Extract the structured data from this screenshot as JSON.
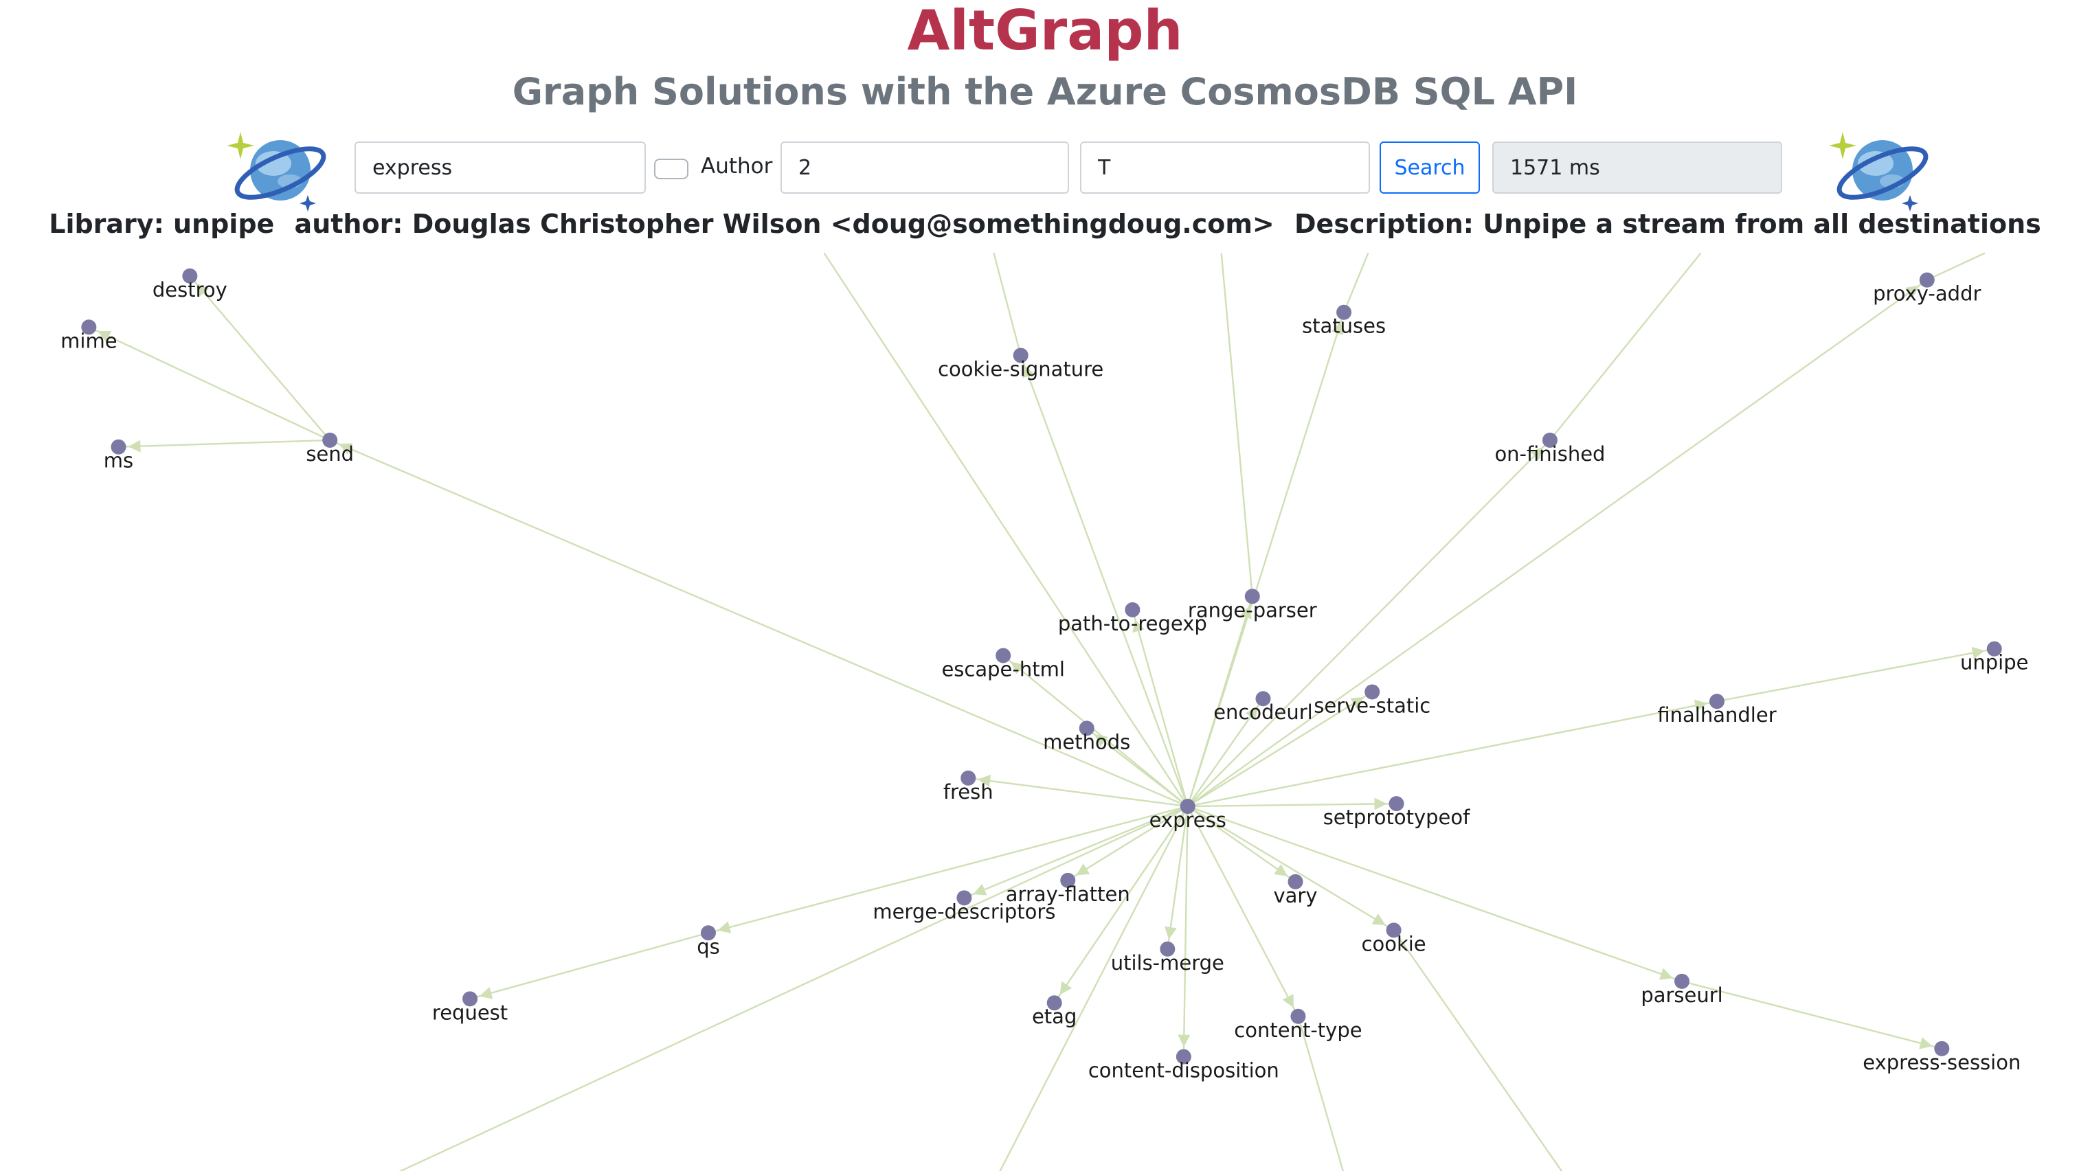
{
  "header": {
    "title": "AltGraph",
    "subtitle": "Graph Solutions with the Azure CosmosDB SQL API"
  },
  "logo_icon": "cosmosdb-planet-icon",
  "search": {
    "query_value": "express",
    "author_label": "Author",
    "author_checked": false,
    "depth_value": "2",
    "flag_value": "T",
    "search_label": "Search",
    "elapsed": "1571 ms"
  },
  "library_info": {
    "library": "Library: unpipe",
    "author": "author: Douglas Christopher Wilson <doug@somethingdoug.com>",
    "description": "Description: Unpipe a stream from all destinations"
  },
  "colors": {
    "title": "#b5334c",
    "subtitle": "#6c757d",
    "node": "#7b78a4",
    "edge": "#cfe0b5",
    "button": "#0d6efd"
  },
  "graph": {
    "nodes": {
      "express": "express",
      "send": "send",
      "destroy": "destroy",
      "mime": "mime",
      "ms": "ms",
      "cookie_signature": "cookie-signature",
      "statuses": "statuses",
      "proxy_addr": "proxy-addr",
      "on_finished": "on-finished",
      "path_to_regexp": "path-to-regexp",
      "range_parser": "range-parser",
      "escape_html": "escape-html",
      "encodeurl": "encodeurl",
      "serve_static": "serve-static",
      "methods": "methods",
      "unpipe": "unpipe",
      "finalhandler": "finalhandler",
      "fresh": "fresh",
      "setprototypeof": "setprototypeof",
      "array_flatten": "array-flatten",
      "merge_descriptors": "merge-descriptors",
      "vary": "vary",
      "qs": "qs",
      "cookie": "cookie",
      "utils_merge": "utils-merge",
      "request": "request",
      "etag": "etag",
      "content_type": "content-type",
      "parseurl": "parseurl",
      "content_disposition": "content-disposition",
      "express_session": "express-session"
    }
  }
}
